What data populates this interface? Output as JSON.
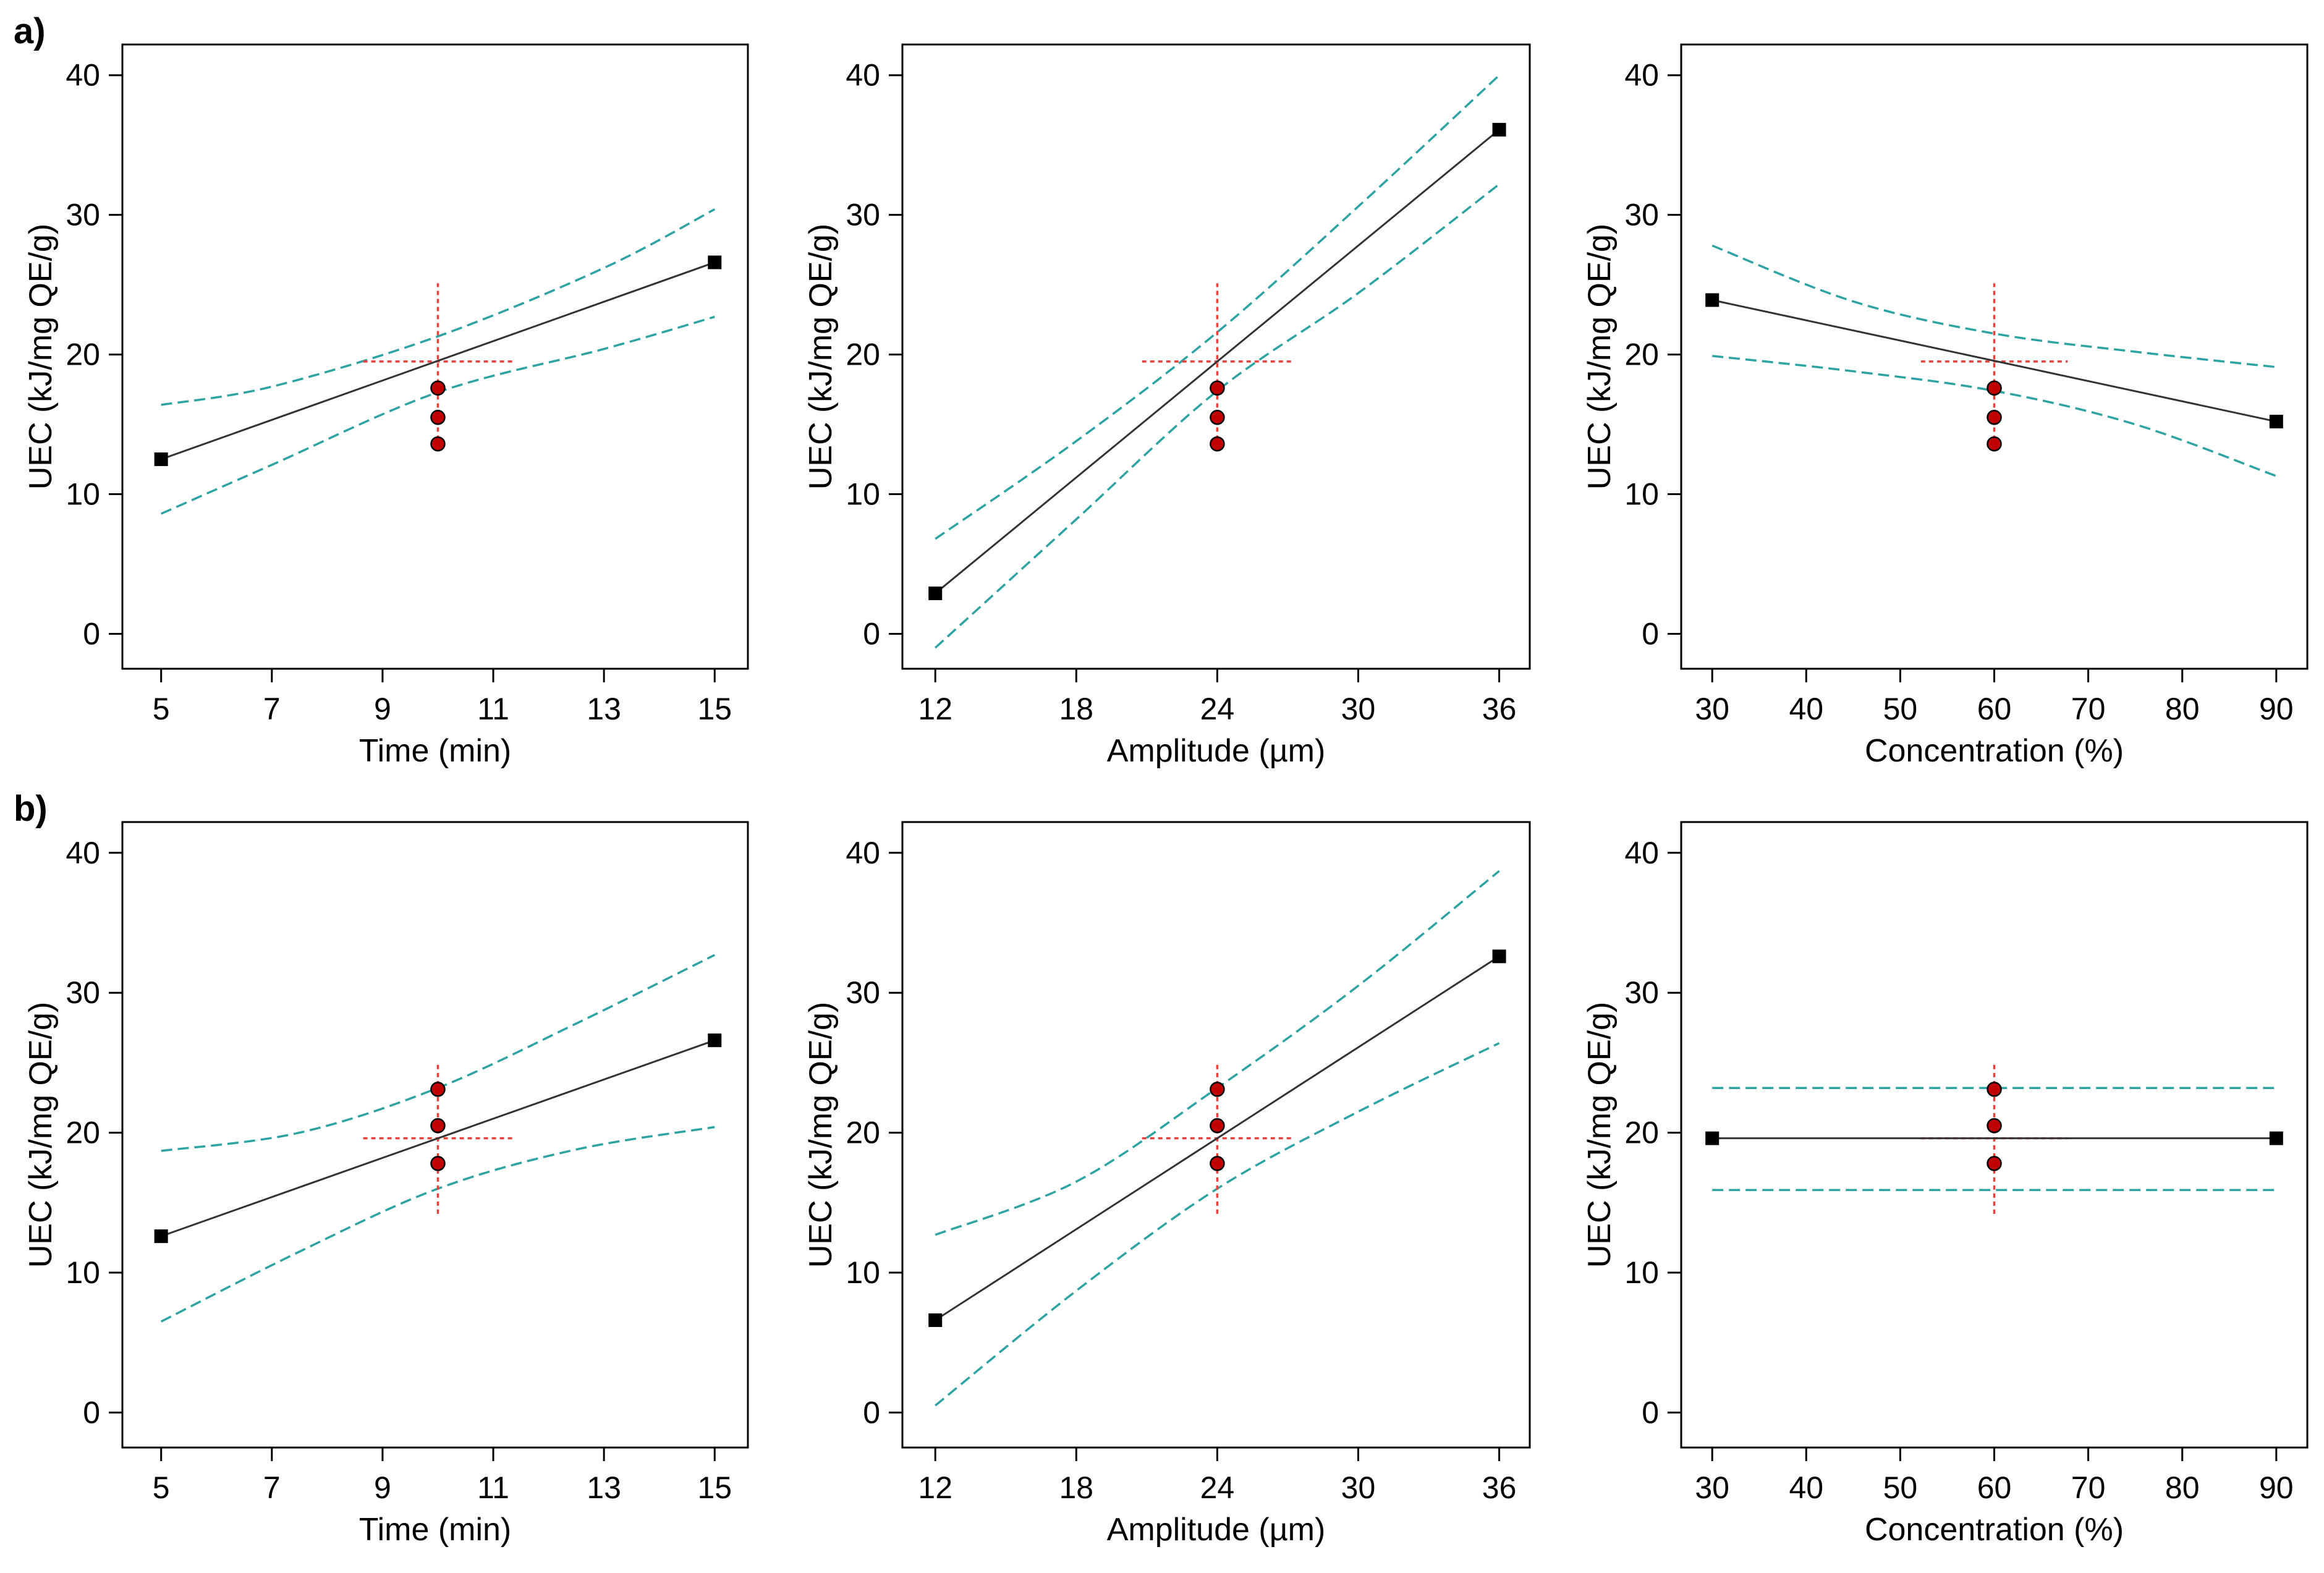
{
  "row_labels": [
    "a)",
    "b)"
  ],
  "colors": {
    "fit_line": "#333333",
    "ci_line": "#2ea3a3",
    "center_cross": "#e8413c",
    "center_point_fill": "#c00000",
    "endpoint_marker": "#000000",
    "frame": "#000000"
  },
  "chart_data": [
    {
      "type": "line",
      "row": 0,
      "col": 0,
      "xlabel": "Time  (min)",
      "ylabel": "UEC (kJ/mg QE/g)",
      "xlim": [
        4.3,
        15.6
      ],
      "ylim": [
        -2.5,
        42.2
      ],
      "xticks": [
        5,
        7,
        9,
        11,
        13,
        15
      ],
      "yticks": [
        0,
        10,
        20,
        30,
        40
      ],
      "fit": {
        "x": [
          5,
          15
        ],
        "y": [
          12.5,
          26.6
        ]
      },
      "ci_upper": {
        "x": [
          5,
          7,
          10,
          13,
          15
        ],
        "y": [
          16.4,
          17.7,
          21.3,
          26.2,
          30.4
        ]
      },
      "ci_lower": {
        "x": [
          5,
          7,
          10,
          13,
          15
        ],
        "y": [
          8.6,
          12.1,
          17.3,
          20.4,
          22.7
        ]
      },
      "center_points": {
        "x": [
          10,
          10,
          10
        ],
        "y": [
          17.6,
          15.5,
          13.6
        ]
      },
      "center_cross": {
        "x": 10,
        "y": 19.5,
        "x_half": 1.35,
        "y_half": 5.6
      }
    },
    {
      "type": "line",
      "row": 0,
      "col": 1,
      "xlabel": "Amplitude (µm)",
      "ylabel": "UEC (kJ/mg QE/g)",
      "xlim": [
        10.6,
        37.3
      ],
      "ylim": [
        -2.5,
        42.2
      ],
      "xticks": [
        12,
        18,
        24,
        30,
        36
      ],
      "yticks": [
        0,
        10,
        20,
        30,
        40
      ],
      "fit": {
        "x": [
          12,
          36
        ],
        "y": [
          2.9,
          36.1
        ]
      },
      "ci_upper": {
        "x": [
          12,
          18,
          24,
          30,
          36
        ],
        "y": [
          6.8,
          13.8,
          21.6,
          30.6,
          40.0
        ]
      },
      "ci_lower": {
        "x": [
          12,
          18,
          24,
          30,
          36
        ],
        "y": [
          -1.0,
          8.2,
          17.4,
          24.4,
          32.2
        ]
      },
      "center_points": {
        "x": [
          24,
          24,
          24
        ],
        "y": [
          17.6,
          15.5,
          13.6
        ]
      },
      "center_cross": {
        "x": 24,
        "y": 19.5,
        "x_half": 3.2,
        "y_half": 5.6
      }
    },
    {
      "type": "line",
      "row": 0,
      "col": 2,
      "xlabel": "Concentration (%)",
      "ylabel": "UEC (kJ/mg QE/g)",
      "xlim": [
        26.7,
        93.3
      ],
      "ylim": [
        -2.5,
        42.2
      ],
      "xticks": [
        30,
        40,
        50,
        60,
        70,
        80,
        90
      ],
      "yticks": [
        0,
        10,
        20,
        30,
        40
      ],
      "fit": {
        "x": [
          30,
          90
        ],
        "y": [
          23.9,
          15.2
        ]
      },
      "ci_upper": {
        "x": [
          30,
          45,
          60,
          75,
          90
        ],
        "y": [
          27.8,
          23.8,
          21.5,
          20.2,
          19.1
        ]
      },
      "ci_lower": {
        "x": [
          30,
          45,
          60,
          75,
          90
        ],
        "y": [
          19.9,
          18.8,
          17.4,
          15.0,
          11.3
        ]
      },
      "center_points": {
        "x": [
          60,
          60,
          60
        ],
        "y": [
          17.6,
          15.5,
          13.6
        ]
      },
      "center_cross": {
        "x": 60,
        "y": 19.5,
        "x_half": 7.8,
        "y_half": 5.6
      }
    },
    {
      "type": "line",
      "row": 1,
      "col": 0,
      "xlabel": "Time  (min)",
      "ylabel": "UEC (kJ/mg QE/g)",
      "xlim": [
        4.3,
        15.6
      ],
      "ylim": [
        -2.5,
        42.2
      ],
      "xticks": [
        5,
        7,
        9,
        11,
        13,
        15
      ],
      "yticks": [
        0,
        10,
        20,
        30,
        40
      ],
      "fit": {
        "x": [
          5,
          15
        ],
        "y": [
          12.6,
          26.6
        ]
      },
      "ci_upper": {
        "x": [
          5,
          7.5,
          10,
          12.5,
          15
        ],
        "y": [
          18.7,
          20.0,
          23.2,
          27.8,
          32.7
        ]
      },
      "ci_lower": {
        "x": [
          5,
          7.5,
          10,
          12.5,
          15
        ],
        "y": [
          6.5,
          11.5,
          16.0,
          18.8,
          20.4
        ]
      },
      "center_points": {
        "x": [
          10,
          10,
          10
        ],
        "y": [
          23.1,
          20.5,
          17.8
        ]
      },
      "center_cross": {
        "x": 10,
        "y": 19.6,
        "x_half": 1.35,
        "y_half": 5.4
      }
    },
    {
      "type": "line",
      "row": 1,
      "col": 1,
      "xlabel": "Amplitude (µm)",
      "ylabel": "UEC (kJ/mg QE/g)",
      "xlim": [
        10.6,
        37.3
      ],
      "ylim": [
        -2.5,
        42.2
      ],
      "xticks": [
        12,
        18,
        24,
        30,
        36
      ],
      "yticks": [
        0,
        10,
        20,
        30,
        40
      ],
      "fit": {
        "x": [
          12,
          36
        ],
        "y": [
          6.6,
          32.6
        ]
      },
      "ci_upper": {
        "x": [
          12,
          18,
          24,
          30,
          36
        ],
        "y": [
          12.7,
          16.5,
          23.2,
          30.5,
          38.7
        ]
      },
      "ci_lower": {
        "x": [
          12,
          18,
          24,
          30,
          36
        ],
        "y": [
          0.5,
          8.7,
          16.0,
          21.5,
          26.4
        ]
      },
      "center_points": {
        "x": [
          24,
          24,
          24
        ],
        "y": [
          23.1,
          20.5,
          17.8
        ]
      },
      "center_cross": {
        "x": 24,
        "y": 19.6,
        "x_half": 3.2,
        "y_half": 5.4
      }
    },
    {
      "type": "line",
      "row": 1,
      "col": 2,
      "xlabel": "Concentration (%)",
      "ylabel": "UEC (kJ/mg QE/g)",
      "xlim": [
        26.7,
        93.3
      ],
      "ylim": [
        -2.5,
        42.2
      ],
      "xticks": [
        30,
        40,
        50,
        60,
        70,
        80,
        90
      ],
      "yticks": [
        0,
        10,
        20,
        30,
        40
      ],
      "fit": {
        "x": [
          30,
          90
        ],
        "y": [
          19.6,
          19.6
        ]
      },
      "ci_upper": {
        "x": [
          30,
          90
        ],
        "y": [
          23.2,
          23.2
        ]
      },
      "ci_lower": {
        "x": [
          30,
          90
        ],
        "y": [
          15.9,
          15.9
        ]
      },
      "center_points": {
        "x": [
          60,
          60,
          60
        ],
        "y": [
          23.1,
          20.5,
          17.8
        ]
      },
      "center_cross": {
        "x": 60,
        "y": 19.6,
        "x_half": 7.8,
        "y_half": 5.4
      }
    }
  ]
}
